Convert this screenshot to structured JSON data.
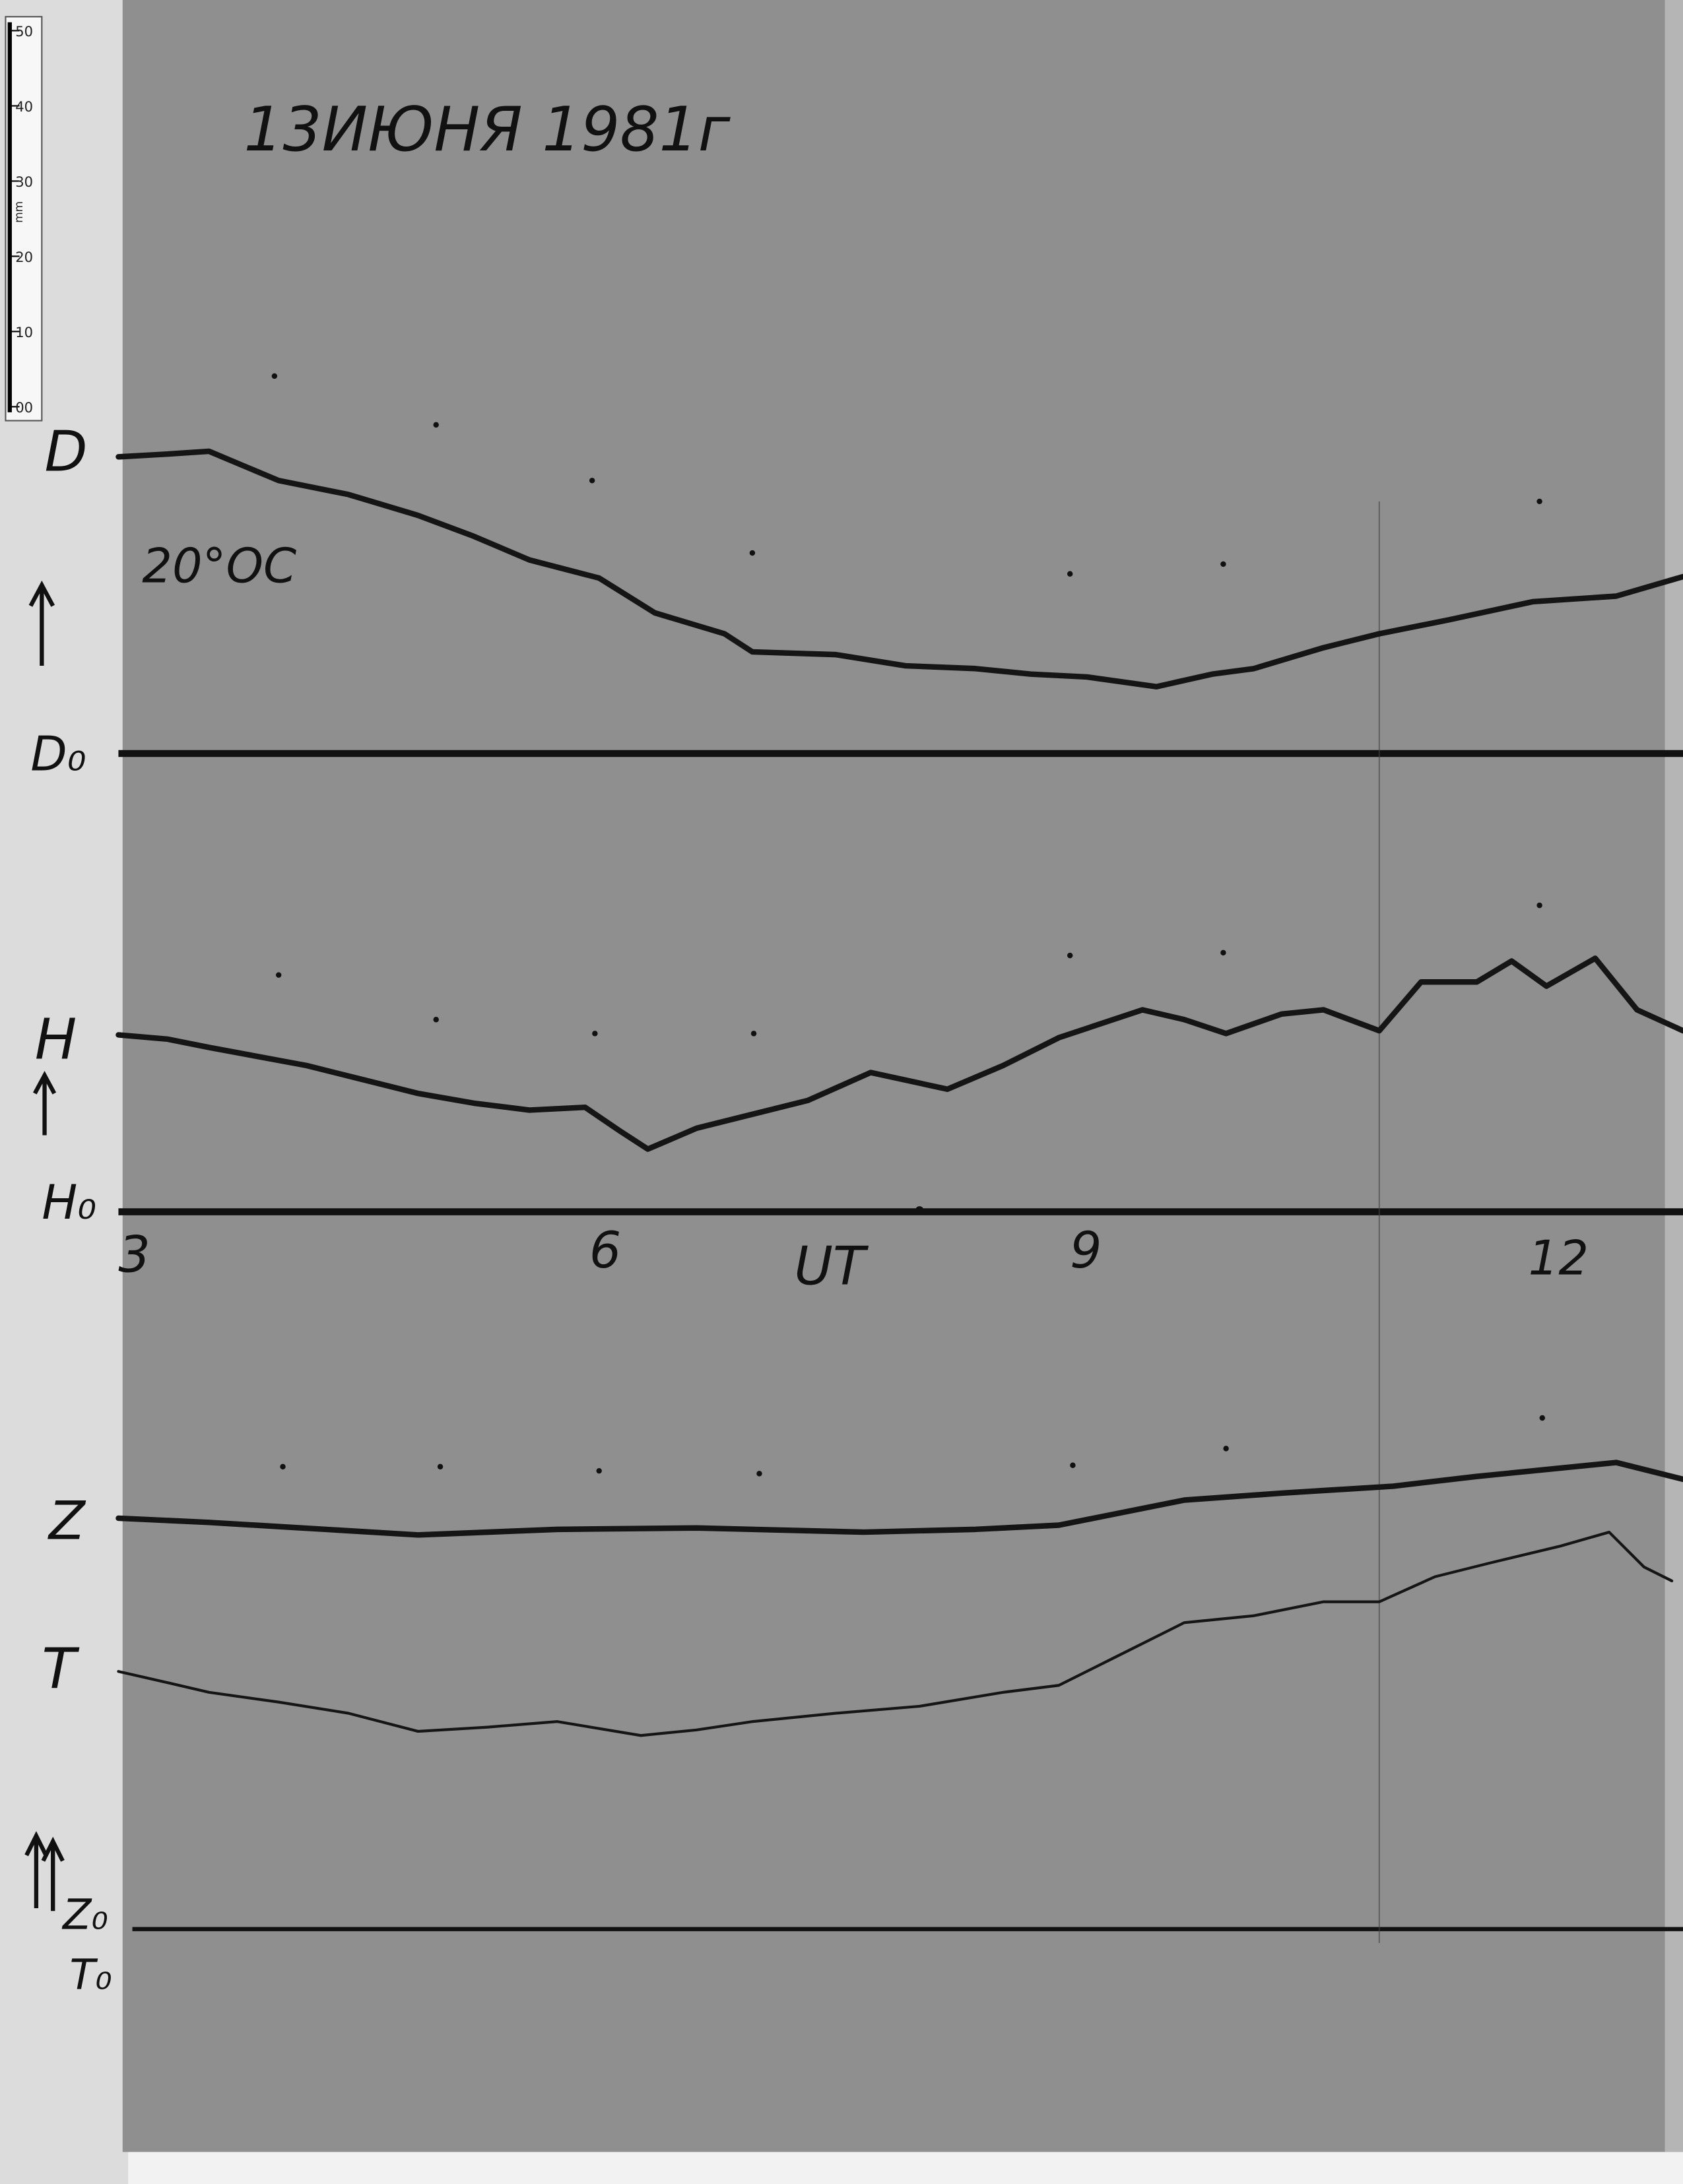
{
  "title": "13ИЮНЯ 1981г",
  "temperature": "20°OC",
  "ruler": {
    "ticks": [
      "50",
      "40",
      "30",
      "20",
      "10",
      "00"
    ],
    "unit": "mm"
  },
  "traces": {
    "D": "D",
    "D0": "D₀",
    "H": "H",
    "H0": "H₀",
    "Z": "Z",
    "T": "T",
    "Z0": "Z₀",
    "T0": "T₀"
  },
  "time_axis": {
    "hours": [
      "3",
      "6",
      "9",
      "12"
    ],
    "label": "UT"
  }
}
